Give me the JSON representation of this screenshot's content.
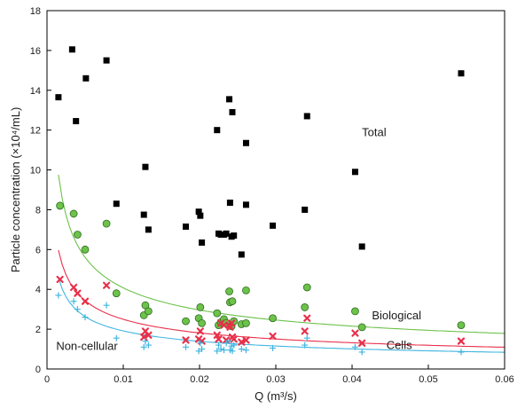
{
  "chart_data": {
    "type": "scatter",
    "xlabel": "Q (m³/s)",
    "ylabel": "Particle concentration (×10⁴/mL)",
    "xlim": [
      0,
      0.06
    ],
    "ylim": [
      0,
      18
    ],
    "xticks": [
      "0",
      "0.01",
      "0.02",
      "0.03",
      "0.04",
      "0.05",
      "0.06"
    ],
    "yticks": [
      "0",
      "2",
      "4",
      "6",
      "8",
      "10",
      "12",
      "14",
      "16",
      "18"
    ],
    "grid": false,
    "annotations": [
      {
        "text": "Total",
        "x": 0.0413,
        "y": 11.7
      },
      {
        "text": "Biological",
        "x": 0.0426,
        "y": 2.5
      },
      {
        "text": "Cells",
        "x": 0.0445,
        "y": 1.0
      },
      {
        "text": "Non-cellular",
        "x": 0.0012,
        "y": 0.95
      }
    ],
    "series": [
      {
        "label": "Total",
        "marker": "square",
        "color": "#000000",
        "points": [
          [
            0.0015,
            13.65
          ],
          [
            0.0033,
            16.05
          ],
          [
            0.0038,
            12.45
          ],
          [
            0.0051,
            14.6
          ],
          [
            0.0078,
            15.5
          ],
          [
            0.0091,
            8.3
          ],
          [
            0.0127,
            7.75
          ],
          [
            0.0129,
            10.15
          ],
          [
            0.0133,
            7.0
          ],
          [
            0.0182,
            7.15
          ],
          [
            0.0199,
            7.9
          ],
          [
            0.0201,
            7.7
          ],
          [
            0.0203,
            6.35
          ],
          [
            0.0223,
            12.0
          ],
          [
            0.0225,
            6.8
          ],
          [
            0.0228,
            6.75
          ],
          [
            0.0232,
            6.75
          ],
          [
            0.0235,
            6.8
          ],
          [
            0.0239,
            13.55
          ],
          [
            0.024,
            8.35
          ],
          [
            0.0242,
            6.65
          ],
          [
            0.0243,
            12.9
          ],
          [
            0.0245,
            6.7
          ],
          [
            0.0255,
            5.75
          ],
          [
            0.0261,
            11.35
          ],
          [
            0.0261,
            8.25
          ],
          [
            0.0296,
            7.2
          ],
          [
            0.0338,
            8.0
          ],
          [
            0.0341,
            12.7
          ],
          [
            0.0404,
            9.9
          ],
          [
            0.0413,
            6.15
          ],
          [
            0.0543,
            14.85
          ]
        ]
      },
      {
        "label": "Biological",
        "marker": "circle",
        "color": "#6cc24a",
        "fit": {
          "type": "power",
          "a": 0.49,
          "b": -0.46
        },
        "points": [
          [
            0.0017,
            8.2
          ],
          [
            0.0035,
            7.8
          ],
          [
            0.004,
            6.75
          ],
          [
            0.005,
            6.0
          ],
          [
            0.0078,
            7.3
          ],
          [
            0.0091,
            3.8
          ],
          [
            0.0127,
            2.7
          ],
          [
            0.0129,
            3.2
          ],
          [
            0.0133,
            2.9
          ],
          [
            0.0182,
            2.4
          ],
          [
            0.0199,
            2.55
          ],
          [
            0.0201,
            3.1
          ],
          [
            0.0203,
            2.3
          ],
          [
            0.0223,
            2.8
          ],
          [
            0.0225,
            2.2
          ],
          [
            0.0228,
            2.35
          ],
          [
            0.0232,
            2.5
          ],
          [
            0.0235,
            2.3
          ],
          [
            0.0239,
            3.9
          ],
          [
            0.024,
            3.35
          ],
          [
            0.0242,
            2.15
          ],
          [
            0.0243,
            3.4
          ],
          [
            0.0245,
            2.4
          ],
          [
            0.0255,
            2.25
          ],
          [
            0.0261,
            3.95
          ],
          [
            0.0261,
            2.3
          ],
          [
            0.0296,
            2.55
          ],
          [
            0.0338,
            3.1
          ],
          [
            0.0341,
            4.1
          ],
          [
            0.0404,
            2.9
          ],
          [
            0.0413,
            2.1
          ],
          [
            0.0543,
            2.2
          ]
        ]
      },
      {
        "label": "Cells",
        "marker": "x",
        "color": "#e8304a",
        "fit": {
          "type": "power",
          "a": 0.3,
          "b": -0.46
        },
        "points": [
          [
            0.0017,
            4.5
          ],
          [
            0.0035,
            4.1
          ],
          [
            0.004,
            3.8
          ],
          [
            0.005,
            3.4
          ],
          [
            0.0078,
            4.2
          ],
          [
            0.0127,
            1.6
          ],
          [
            0.0129,
            1.9
          ],
          [
            0.0133,
            1.7
          ],
          [
            0.0182,
            1.45
          ],
          [
            0.0199,
            1.5
          ],
          [
            0.0201,
            1.9
          ],
          [
            0.0203,
            1.4
          ],
          [
            0.0223,
            1.7
          ],
          [
            0.0225,
            1.5
          ],
          [
            0.0228,
            2.3
          ],
          [
            0.0232,
            2.2
          ],
          [
            0.0235,
            1.45
          ],
          [
            0.0239,
            2.2
          ],
          [
            0.024,
            2.1
          ],
          [
            0.0242,
            2.3
          ],
          [
            0.0243,
            1.6
          ],
          [
            0.0245,
            1.5
          ],
          [
            0.0255,
            1.35
          ],
          [
            0.0261,
            1.45
          ],
          [
            0.0296,
            1.65
          ],
          [
            0.0338,
            1.9
          ],
          [
            0.0341,
            2.55
          ],
          [
            0.0404,
            1.8
          ],
          [
            0.0413,
            1.3
          ],
          [
            0.0543,
            1.4
          ]
        ]
      },
      {
        "label": "Non-cellular",
        "marker": "plus",
        "color": "#3fb5e0",
        "fit": {
          "type": "power",
          "a": 0.23,
          "b": -0.46
        },
        "points": [
          [
            0.0015,
            3.7
          ],
          [
            0.0035,
            3.4
          ],
          [
            0.004,
            3.0
          ],
          [
            0.005,
            2.6
          ],
          [
            0.0078,
            3.2
          ],
          [
            0.0091,
            1.55
          ],
          [
            0.0127,
            1.1
          ],
          [
            0.0129,
            1.4
          ],
          [
            0.0133,
            1.2
          ],
          [
            0.0182,
            1.1
          ],
          [
            0.0199,
            0.9
          ],
          [
            0.0201,
            1.3
          ],
          [
            0.0203,
            1.0
          ],
          [
            0.0223,
            0.9
          ],
          [
            0.0225,
            1.2
          ],
          [
            0.0228,
            1.0
          ],
          [
            0.0232,
            0.95
          ],
          [
            0.0235,
            1.3
          ],
          [
            0.0239,
            1.4
          ],
          [
            0.024,
            0.95
          ],
          [
            0.0242,
            1.15
          ],
          [
            0.0243,
            0.9
          ],
          [
            0.0245,
            1.2
          ],
          [
            0.0255,
            1.0
          ],
          [
            0.0261,
            0.95
          ],
          [
            0.0296,
            1.05
          ],
          [
            0.0338,
            1.2
          ],
          [
            0.0341,
            1.55
          ],
          [
            0.0404,
            1.1
          ],
          [
            0.0413,
            0.85
          ],
          [
            0.0543,
            0.85
          ]
        ]
      }
    ]
  }
}
